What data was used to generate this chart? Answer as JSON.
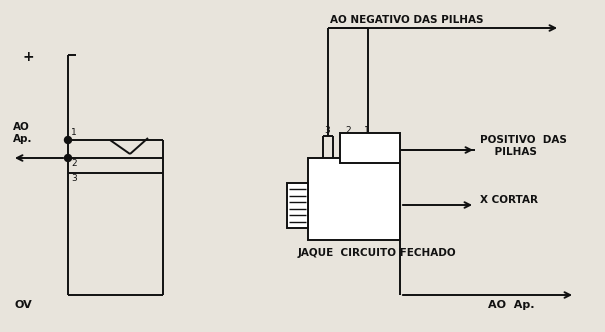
{
  "bg_color": "#e8e4dc",
  "line_color": "#111111",
  "lw": 1.4,
  "title": "JAQUE  CIRCUITO FECHADO",
  "label_ao_negativo": "AO NEGATIVO DAS PILHAS",
  "label_positivo": "POSITIVO  DAS\n    PILHAS",
  "label_x_cortar": "X CORTAR",
  "label_ao_ap": "AO  Ap.",
  "label_ov": "OV",
  "label_plus": "+",
  "label_ao_ap_left": "AO\nAp.",
  "font_size": 7.5
}
